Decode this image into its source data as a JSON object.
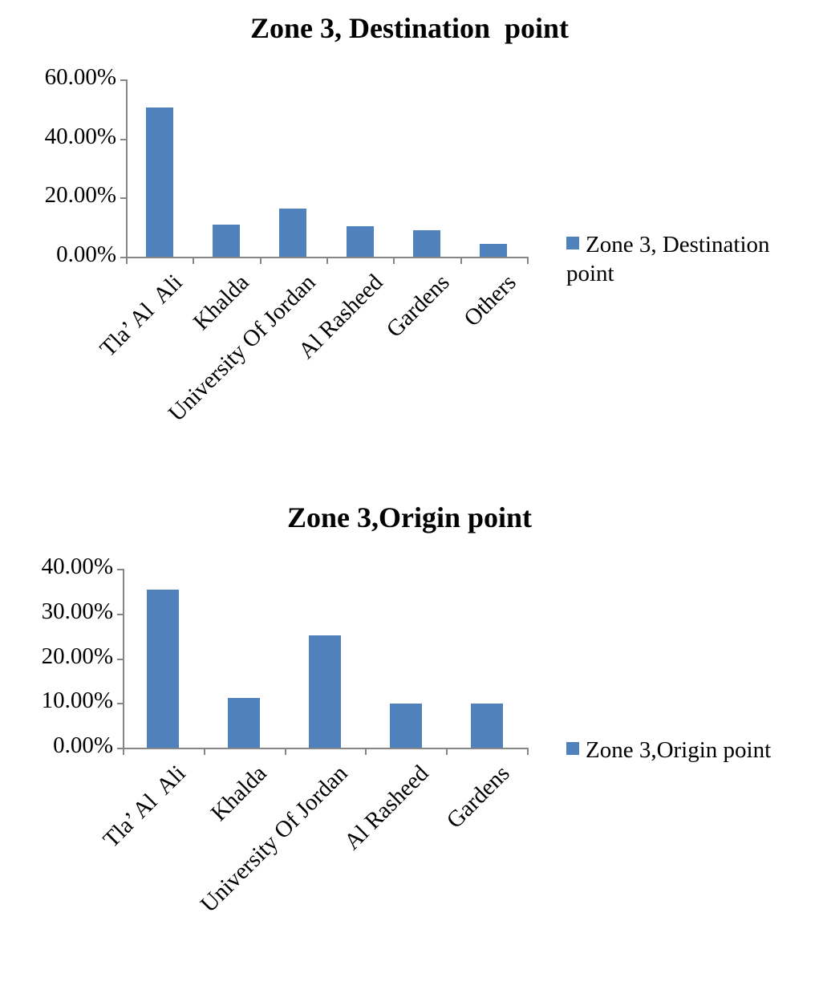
{
  "chart_data": [
    {
      "type": "bar",
      "title": "Zone 3, Destination  point",
      "categories": [
        "Tla’ Al  Ali",
        "Khalda",
        "University Of Jordan",
        "Al Rasheed",
        "Gardens",
        "Others"
      ],
      "series": [
        {
          "name": "Zone 3, Destination point",
          "values": [
            50.4,
            10.9,
            16.3,
            10.3,
            8.9,
            4.3
          ],
          "color": "#4f81bd"
        }
      ],
      "yticks": [
        "0.00%",
        "20.00%",
        "40.00%",
        "60.00%"
      ],
      "ylim": [
        0,
        60
      ],
      "xlabel": "",
      "ylabel": "",
      "grid": false,
      "legend_position": "right"
    },
    {
      "type": "bar",
      "title": "Zone 3,Origin point",
      "categories": [
        "Tla’ Al  Ali",
        "Khalda",
        "University Of Jordan",
        "Al Rasheed",
        "Gardens"
      ],
      "series": [
        {
          "name": "Zone 3,Origin point",
          "values": [
            35.4,
            11.2,
            25.1,
            9.9,
            9.9
          ],
          "color": "#4f81bd"
        }
      ],
      "yticks": [
        "0.00%",
        "10.00%",
        "20.00%",
        "30.00%",
        "40.00%"
      ],
      "ylim": [
        0,
        40
      ],
      "xlabel": "",
      "ylabel": "",
      "grid": false,
      "legend_position": "right"
    }
  ]
}
